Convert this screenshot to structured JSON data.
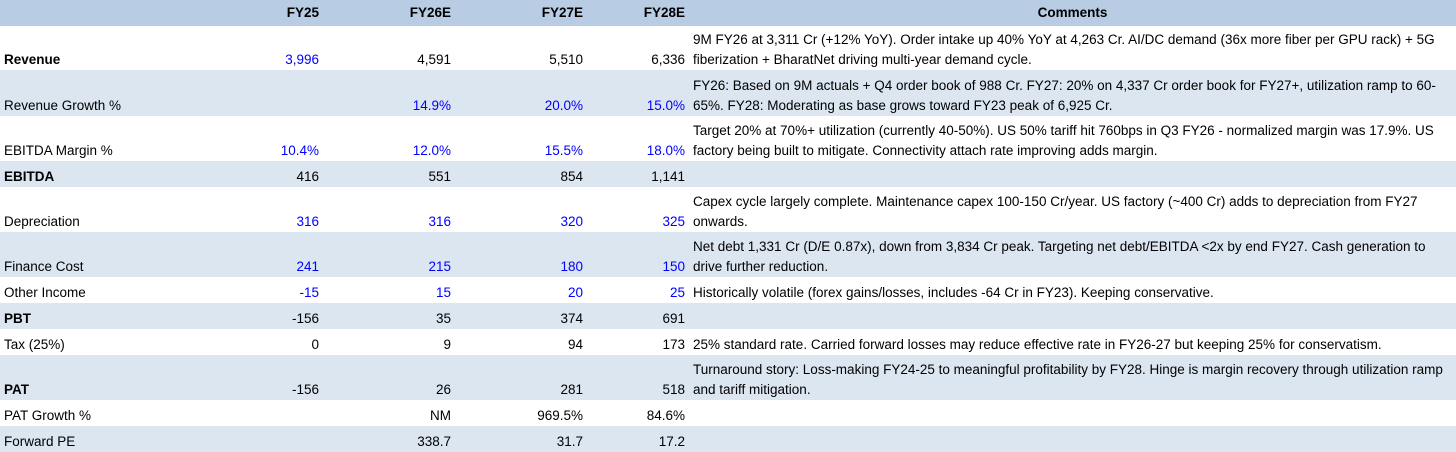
{
  "header": {
    "metric": "",
    "fy25": "FY25",
    "fy26e": "FY26E",
    "fy27e": "FY27E",
    "fy28e": "FY28E",
    "comments": "Comments"
  },
  "rows": [
    {
      "label": "Revenue",
      "fy25": "3,996",
      "fy26e": "4,591",
      "fy27e": "5,510",
      "fy28e": "6,336",
      "comment": "9M FY26 at 3,311 Cr (+12% YoY). Order intake up 40% YoY at 4,263 Cr. AI/DC demand (36x more fiber per GPU rack) + 5G fiberization + BharatNet driving multi-year demand cycle."
    },
    {
      "label": "Revenue Growth %",
      "fy25": "",
      "fy26e": "14.9%",
      "fy27e": "20.0%",
      "fy28e": "15.0%",
      "comment": "FY26: Based on 9M actuals + Q4 order book of 988 Cr. FY27: 20% on 4,337 Cr order book for FY27+, utilization ramp to 60-65%. FY28: Moderating as base grows toward FY23 peak of 6,925 Cr."
    },
    {
      "label": "EBITDA Margin %",
      "fy25": "10.4%",
      "fy26e": "12.0%",
      "fy27e": "15.5%",
      "fy28e": "18.0%",
      "comment": "Target 20% at 70%+ utilization (currently 40-50%). US 50% tariff hit 760bps in Q3 FY26 - normalized margin was 17.9%. US factory being built to mitigate. Connectivity attach rate improving adds margin."
    },
    {
      "label": "EBITDA",
      "fy25": "416",
      "fy26e": "551",
      "fy27e": "854",
      "fy28e": "1,141",
      "comment": ""
    },
    {
      "label": "Depreciation",
      "fy25": "316",
      "fy26e": "316",
      "fy27e": "320",
      "fy28e": "325",
      "comment": "Capex cycle largely complete. Maintenance capex 100-150 Cr/year. US factory (~400 Cr) adds to depreciation from FY27 onwards."
    },
    {
      "label": "Finance Cost",
      "fy25": "241",
      "fy26e": "215",
      "fy27e": "180",
      "fy28e": "150",
      "comment": "Net debt 1,331 Cr (D/E 0.87x), down from 3,834 Cr peak. Targeting net debt/EBITDA <2x by end FY27. Cash generation to drive further reduction."
    },
    {
      "label": "Other Income",
      "fy25": "-15",
      "fy26e": "15",
      "fy27e": "20",
      "fy28e": "25",
      "comment": "Historically volatile (forex gains/losses, includes -64 Cr in FY23). Keeping conservative."
    },
    {
      "label": "PBT",
      "fy25": "-156",
      "fy26e": "35",
      "fy27e": "374",
      "fy28e": "691",
      "comment": ""
    },
    {
      "label": "Tax (25%)",
      "fy25": "0",
      "fy26e": "9",
      "fy27e": "94",
      "fy28e": "173",
      "comment": "25% standard rate. Carried forward losses may reduce effective rate in FY26-27 but keeping 25% for conservatism."
    },
    {
      "label": "PAT",
      "fy25": "-156",
      "fy26e": "26",
      "fy27e": "281",
      "fy28e": "518",
      "comment": "Turnaround story: Loss-making FY24-25 to meaningful profitability by FY28. Hinge is margin recovery through utilization ramp and tariff mitigation."
    },
    {
      "label": "PAT Growth %",
      "fy25": "",
      "fy26e": "NM",
      "fy27e": "969.5%",
      "fy28e": "84.6%",
      "comment": ""
    },
    {
      "label": "Forward PE",
      "fy25": "",
      "fy26e": "338.7",
      "fy27e": "31.7",
      "fy28e": "17.2",
      "comment": ""
    }
  ],
  "colors": {
    "header_bg": "#b8cce4",
    "shade_bg": "#dce6f1",
    "input_text": "#0000ff"
  }
}
